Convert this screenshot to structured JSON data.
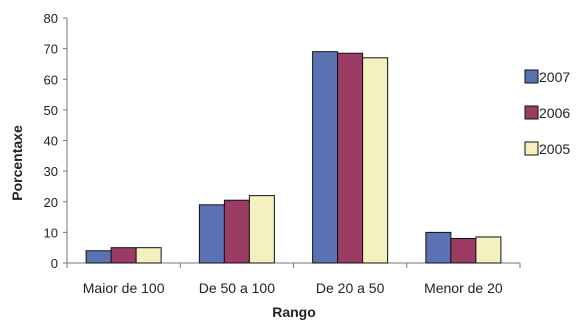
{
  "chart_data": {
    "type": "bar",
    "categories": [
      "Maior de 100",
      "De 50 a 100",
      "De 20 a 50",
      "Menor de 20"
    ],
    "series": [
      {
        "name": "2007",
        "values": [
          4,
          19,
          69,
          10
        ],
        "color": "#5a72b4"
      },
      {
        "name": "2006",
        "values": [
          5,
          20.5,
          68.5,
          8
        ],
        "color": "#9c3b64"
      },
      {
        "name": "2005",
        "values": [
          5,
          22,
          67,
          8.5
        ],
        "color": "#f5f0bf"
      }
    ],
    "title": "",
    "xlabel": "Rango",
    "ylabel": "Porcentaxe",
    "ylim": [
      0,
      80
    ],
    "yticks": [
      "0",
      "10",
      "20",
      "30",
      "40",
      "50",
      "60",
      "70",
      "80"
    ],
    "grid": false,
    "legend_position": "right"
  }
}
